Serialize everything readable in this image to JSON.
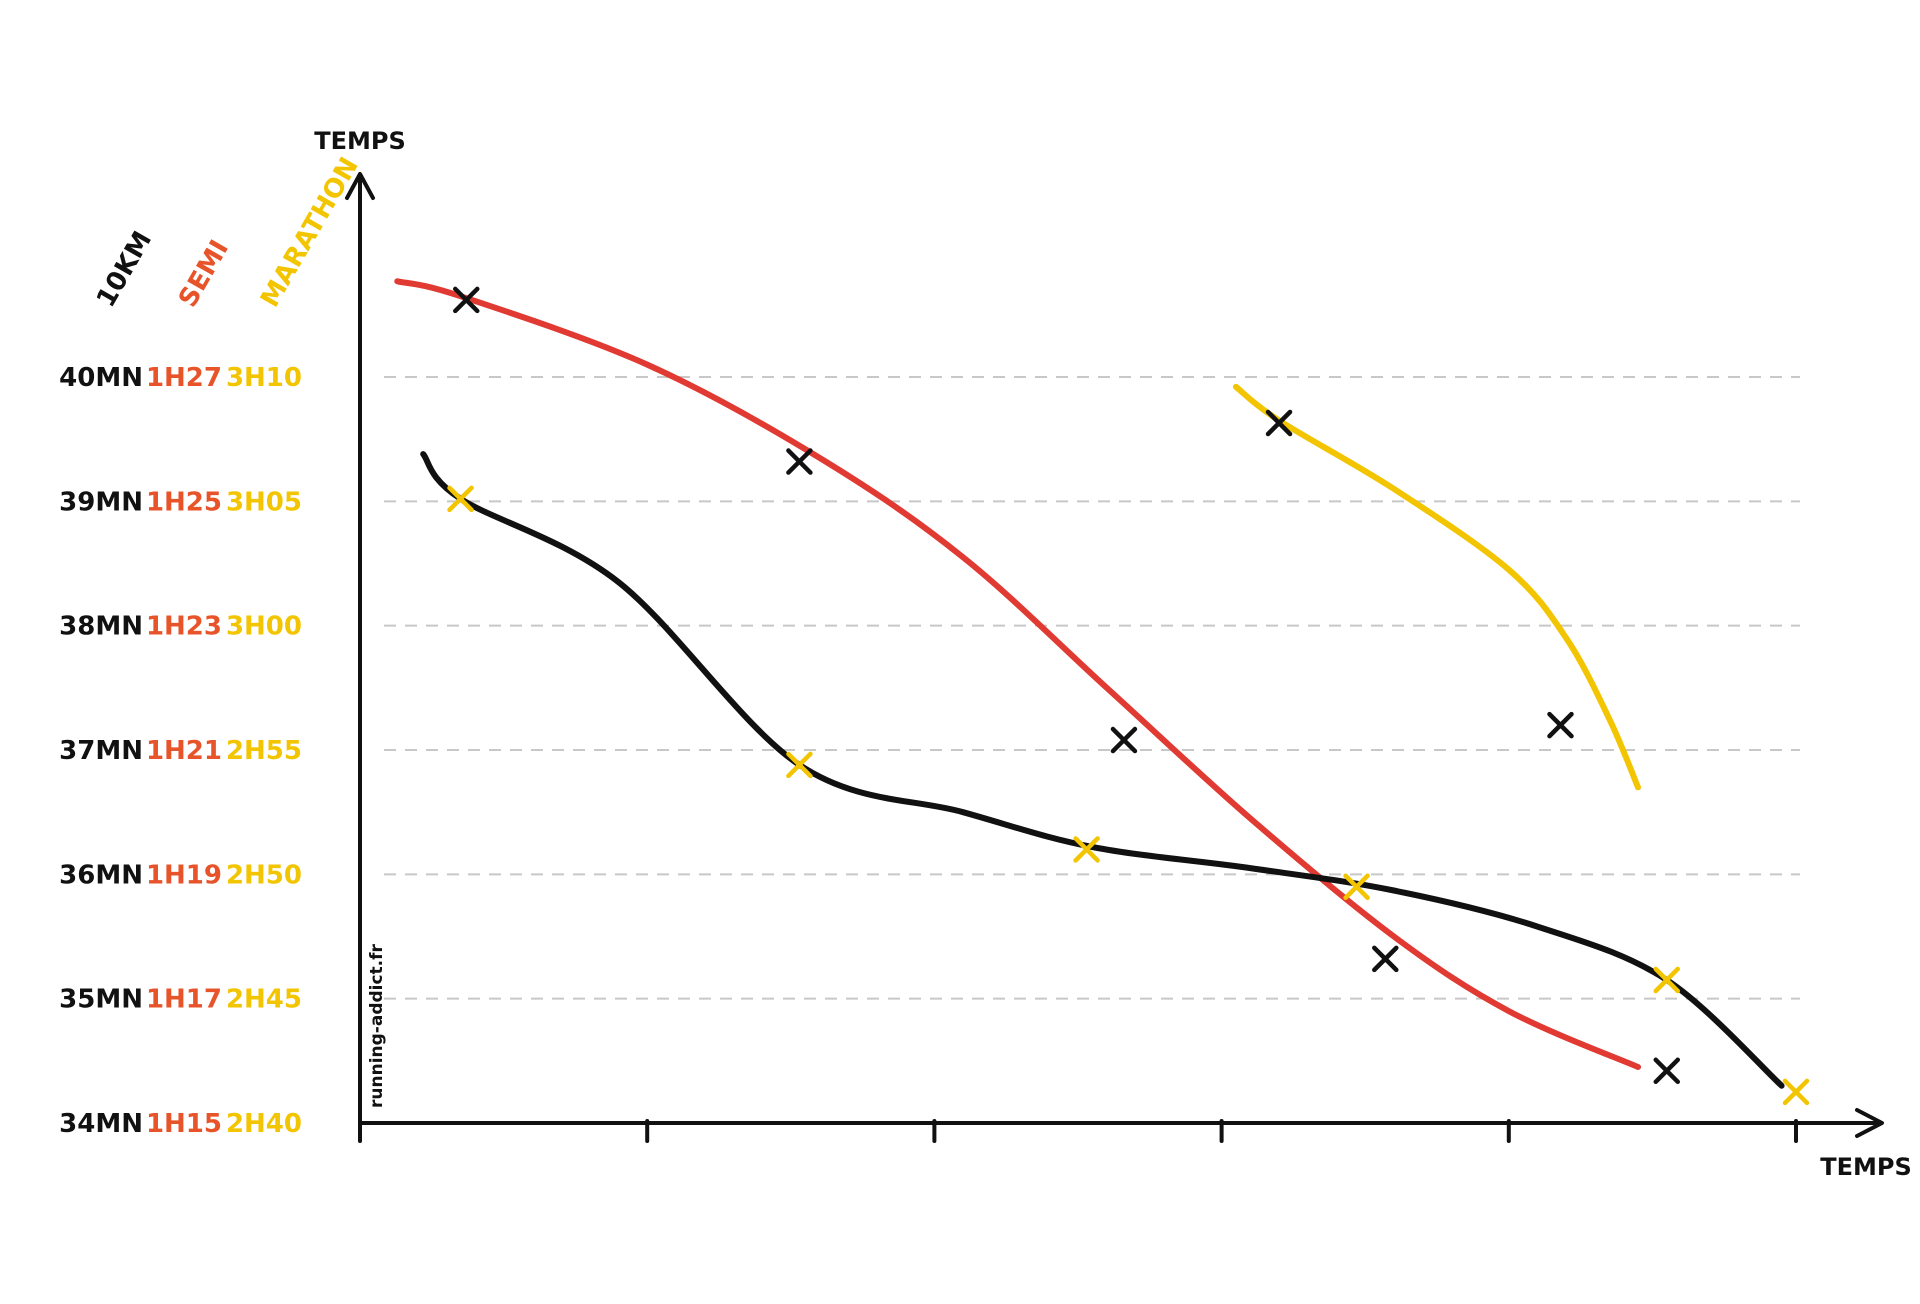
{
  "chart_data": {
    "type": "line",
    "axis_titles": {
      "x": "TEMPS",
      "y": "TEMPS"
    },
    "watermark": "running-addict.fr",
    "y_columns": [
      {
        "header": "10KM",
        "color": "#111111",
        "ticks": [
          "34MN",
          "35MN",
          "36MN",
          "37MN",
          "38MN",
          "39MN",
          "40MN"
        ]
      },
      {
        "header": "SEMI",
        "color": "#e8542a",
        "ticks": [
          "1H15",
          "1H17",
          "1H19",
          "1H21",
          "1H23",
          "1H25",
          "1H27"
        ]
      },
      {
        "header": "MARATHON",
        "color": "#f2c500",
        "ticks": [
          "2H40",
          "2H45",
          "2H50",
          "2H55",
          "3H00",
          "3H05",
          "3H10"
        ]
      }
    ],
    "y_tick_values": [
      34,
      35,
      36,
      37,
      38,
      39,
      40
    ],
    "ylim": [
      34,
      40
    ],
    "xlim": [
      0,
      5
    ],
    "x_tick_positions": [
      0,
      1,
      2,
      3,
      4,
      5
    ],
    "grid": true,
    "series": [
      {
        "color": "#e03a33",
        "marker_color": "#111111",
        "curve": [
          [
            0.13,
            40.77
          ],
          [
            0.35,
            40.65
          ],
          [
            1.0,
            40.1
          ],
          [
            1.6,
            39.35
          ],
          [
            2.1,
            38.55
          ],
          [
            2.6,
            37.5
          ],
          [
            3.1,
            36.45
          ],
          [
            3.6,
            35.5
          ],
          [
            4.0,
            34.9
          ],
          [
            4.45,
            34.45
          ]
        ],
        "points": [
          [
            0.37,
            40.62
          ],
          [
            1.53,
            39.32
          ],
          [
            2.66,
            37.08
          ],
          [
            3.57,
            35.32
          ],
          [
            4.55,
            34.42
          ]
        ]
      },
      {
        "color": "#111111",
        "marker_color": "#f2c500",
        "curve": [
          [
            0.22,
            39.38
          ],
          [
            0.35,
            39.02
          ],
          [
            0.9,
            38.35
          ],
          [
            1.53,
            36.88
          ],
          [
            2.1,
            36.5
          ],
          [
            2.55,
            36.22
          ],
          [
            3.1,
            36.05
          ],
          [
            3.6,
            35.87
          ],
          [
            4.1,
            35.58
          ],
          [
            4.55,
            35.15
          ],
          [
            4.95,
            34.3
          ]
        ],
        "points": [
          [
            0.35,
            39.02
          ],
          [
            1.53,
            36.88
          ],
          [
            2.53,
            36.2
          ],
          [
            3.47,
            35.9
          ],
          [
            4.55,
            35.15
          ],
          [
            5.0,
            34.25
          ]
        ]
      },
      {
        "color": "#f2c500",
        "marker_color": "#111111",
        "curve": [
          [
            3.05,
            39.92
          ],
          [
            3.2,
            39.65
          ],
          [
            3.6,
            39.1
          ],
          [
            4.0,
            38.45
          ],
          [
            4.2,
            37.9
          ],
          [
            4.35,
            37.25
          ],
          [
            4.45,
            36.7
          ]
        ],
        "points": [
          [
            3.2,
            39.63
          ],
          [
            4.18,
            37.2
          ]
        ]
      }
    ]
  }
}
